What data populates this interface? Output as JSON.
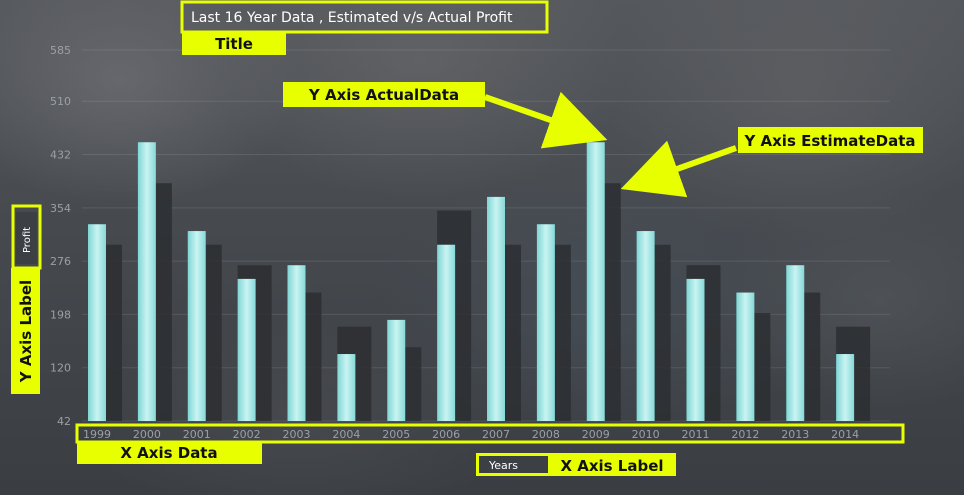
{
  "chart_data": {
    "type": "bar",
    "title": "Last 16 Year Data , Estimated v/s Actual Profit",
    "xlabel": "Years",
    "ylabel": "Profit",
    "categories": [
      "1999",
      "2000",
      "2001",
      "2002",
      "2003",
      "2004",
      "2005",
      "2006",
      "2007",
      "2008",
      "2009",
      "2010",
      "2011",
      "2012",
      "2013",
      "2014"
    ],
    "yticks": [
      42,
      120,
      198,
      276,
      354,
      432,
      510,
      585
    ],
    "ylim": [
      42,
      585
    ],
    "grid": true,
    "series": [
      {
        "role": "estimate",
        "values": [
          300,
          390,
          300,
          270,
          230,
          180,
          150,
          350,
          300,
          300,
          390,
          300,
          270,
          200,
          230,
          180
        ]
      },
      {
        "role": "actual",
        "values": [
          330,
          450,
          320,
          250,
          270,
          140,
          190,
          300,
          370,
          330,
          450,
          320,
          250,
          230,
          270,
          140
        ]
      }
    ],
    "colors": {
      "estimate": "#2b2e31",
      "actual": "#9ee5e3"
    }
  },
  "annotations": {
    "title_label": "Title",
    "actual_label": "Y Axis ActualData",
    "estimate_label": "Y Axis EstimateData",
    "ylabel_label": "Y Axis Label",
    "xdata_label": "X Axis Data",
    "xlabel_label": "X Axis Label",
    "color": "#e8ff00"
  }
}
